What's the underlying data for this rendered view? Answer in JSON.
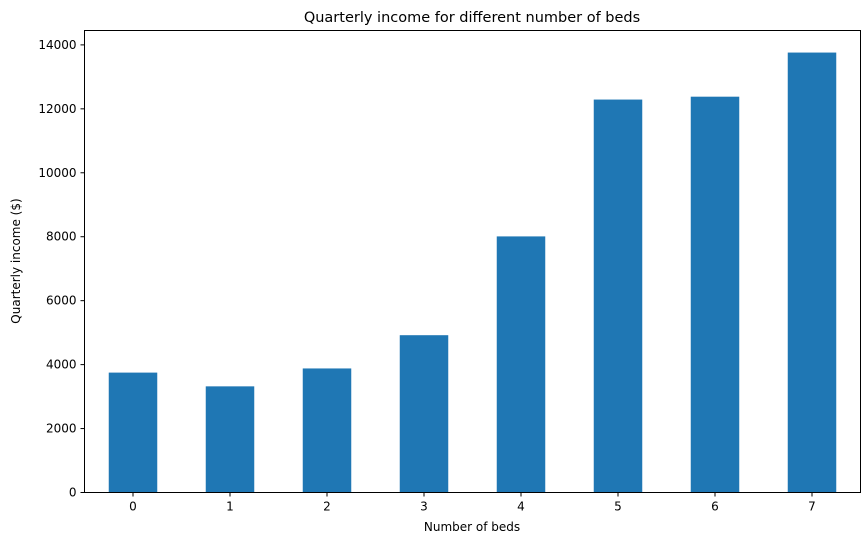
{
  "chart_data": {
    "type": "bar",
    "title": "Quarterly income for different number of beds",
    "xlabel": "Number of beds",
    "ylabel": "Quarterly income ($)",
    "categories": [
      "0",
      "1",
      "2",
      "3",
      "4",
      "5",
      "6",
      "7"
    ],
    "values": [
      3750,
      3320,
      3880,
      4920,
      8010,
      12290,
      12380,
      13760
    ],
    "ylim": [
      0,
      14450
    ],
    "yticks": [
      0,
      2000,
      4000,
      6000,
      8000,
      10000,
      12000,
      14000
    ],
    "grid": false,
    "legend": "none",
    "bar_color": "#1f77b4"
  }
}
